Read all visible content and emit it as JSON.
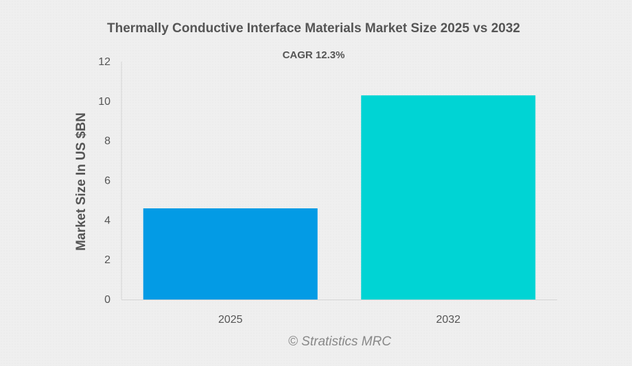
{
  "chart_data": {
    "type": "bar",
    "title": "Thermally Conductive Interface Materials Market Size 2025 vs 2032",
    "subtitle": "CAGR 12.3%",
    "xlabel": "",
    "ylabel": "Market Size In US $BN",
    "categories": [
      "2025",
      "2032"
    ],
    "values": [
      4.6,
      10.3
    ],
    "ylim": [
      0,
      12
    ],
    "yticks": [
      0,
      2,
      4,
      6,
      8,
      10,
      12
    ],
    "grid": false,
    "legend": "none",
    "colors": [
      "#039BE5",
      "#00D4D4"
    ],
    "credit": "© Stratistics MRC"
  }
}
